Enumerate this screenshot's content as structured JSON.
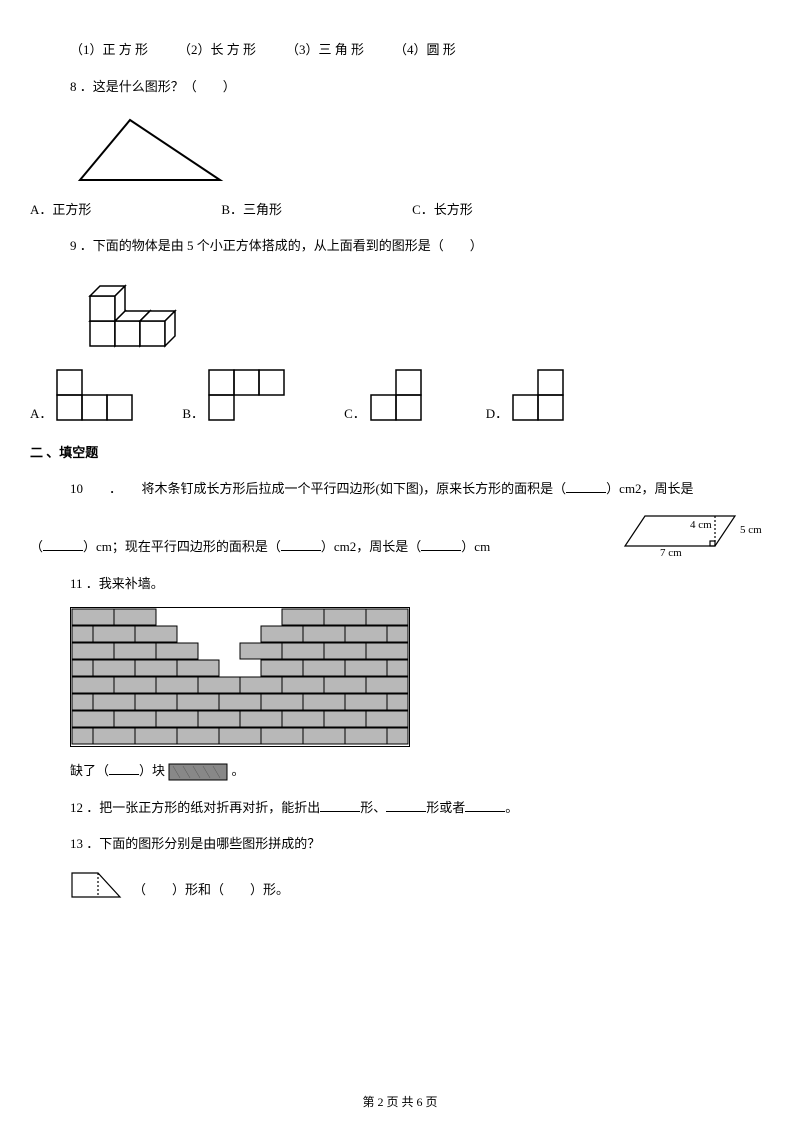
{
  "q_shapes": {
    "opt1": "（1）正 方 形",
    "opt2": "（2）长 方 形",
    "opt3": "（3）三 角 形",
    "opt4": "（4）圆 形"
  },
  "q8": {
    "text": "8 ．这是什么图形？（　　）",
    "optA": "A．正方形",
    "optB": "B．三角形",
    "optC": "C．长方形"
  },
  "q9": {
    "text": "9 ．下面的物体是由 5 个小正方体搭成的，从上面看到的图形是（　　）",
    "labelA": "A．",
    "labelB": "B．",
    "labelC": "C．",
    "labelD": "D．"
  },
  "section2": "二 、填空题",
  "q10": {
    "prefix": "10　　．　　将木条钉成长方形后拉成一个平行四边形(如下图)，原来长方形的面积是（",
    "mid1": "）cm2，周长是",
    "line2_prefix": "（",
    "line2_mid": "）cm；现在平行四边形的面积是（",
    "line2_mid2": "）cm2，周长是（",
    "line2_end": "）cm",
    "dim_4cm": "4 cm",
    "dim_5cm": "5 cm",
    "dim_7cm": "7 cm"
  },
  "q11": {
    "text": "11 ．我来补墙。",
    "result_prefix": "缺了（",
    "result_mid": "）块",
    "result_suffix": "。"
  },
  "q12": {
    "prefix": "12 ．把一张正方形的纸对折再对折，能折出",
    "mid1": "形、",
    "mid2": "形或者",
    "suffix": "。"
  },
  "q13": {
    "text": "13 ．下面的图形分别是由哪些图形拼成的？",
    "answer": "（　　）形和（　　）形。"
  },
  "footer": "第 2 页 共 6 页",
  "colors": {
    "brick_fill": "#b8b8b8",
    "brick_stroke": "#000000",
    "cube_fill": "#ffffff",
    "cube_stroke": "#000000"
  }
}
